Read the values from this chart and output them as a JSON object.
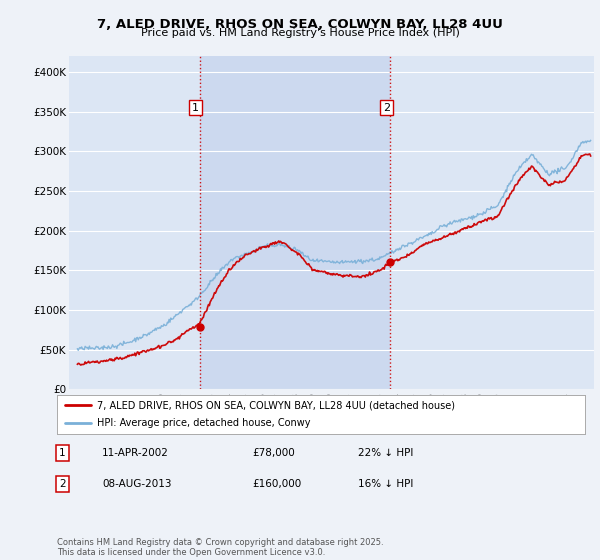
{
  "title": "7, ALED DRIVE, RHOS ON SEA, COLWYN BAY, LL28 4UU",
  "subtitle": "Price paid vs. HM Land Registry's House Price Index (HPI)",
  "background_color": "#eef2f8",
  "plot_bg_color": "#dce6f4",
  "plot_highlight_color": "#ccd9ef",
  "hpi_color": "#7ab0d8",
  "price_color": "#cc0000",
  "vline_color": "#cc0000",
  "purchase1_date": 2002.27,
  "purchase1_price": 78000,
  "purchase1_label": "1",
  "purchase2_date": 2013.6,
  "purchase2_price": 160000,
  "purchase2_label": "2",
  "ylim": [
    0,
    420000
  ],
  "xlim": [
    1994.5,
    2025.7
  ],
  "yticks": [
    0,
    50000,
    100000,
    150000,
    200000,
    250000,
    300000,
    350000,
    400000
  ],
  "ytick_labels": [
    "£0",
    "£50K",
    "£100K",
    "£150K",
    "£200K",
    "£250K",
    "£300K",
    "£350K",
    "£400K"
  ],
  "legend_label1": "7, ALED DRIVE, RHOS ON SEA, COLWYN BAY, LL28 4UU (detached house)",
  "legend_label2": "HPI: Average price, detached house, Conwy",
  "note1_label": "1",
  "note1_date": "11-APR-2002",
  "note1_price": "£78,000",
  "note1_hpi": "22% ↓ HPI",
  "note2_label": "2",
  "note2_date": "08-AUG-2013",
  "note2_price": "£160,000",
  "note2_hpi": "16% ↓ HPI",
  "footer": "Contains HM Land Registry data © Crown copyright and database right 2025.\nThis data is licensed under the Open Government Licence v3.0."
}
